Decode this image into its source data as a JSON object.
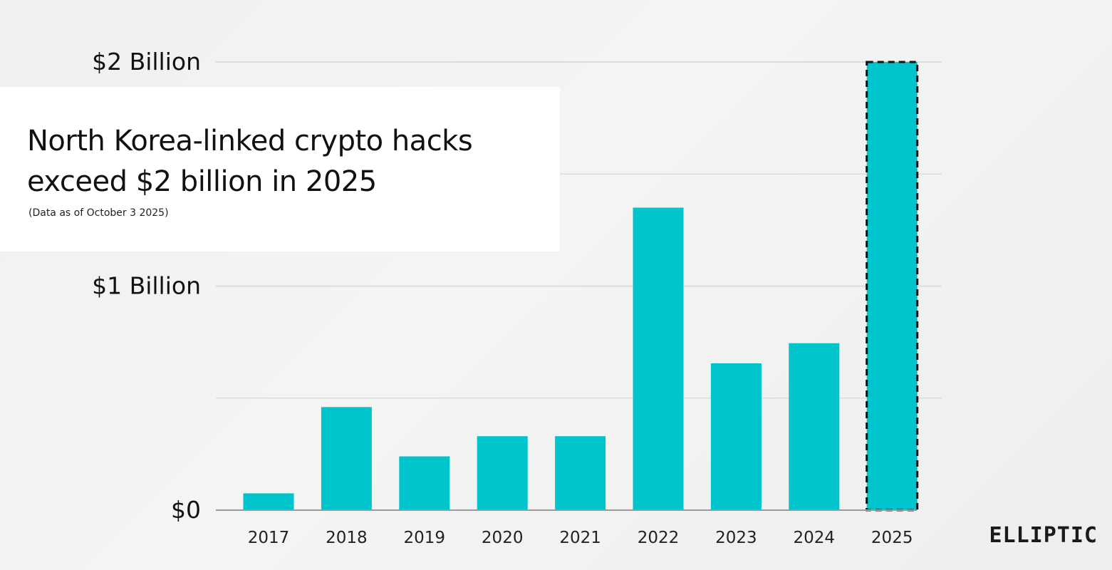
{
  "title": "North Korea-linked crypto hacks exceed $2 billion in 2025",
  "subtitle": "(Data as of October 3 2025)",
  "brand": "ELLIPTIC",
  "colors": {
    "bar": "#00c4cc",
    "highlight_border": "#111111",
    "grid": "#dcdcdc",
    "baseline": "#9a9a9a"
  },
  "chart_data": {
    "type": "bar",
    "title": "North Korea-linked crypto hacks exceed $2 billion in 2025",
    "subtitle": "(Data as of October 3 2025)",
    "categories": [
      "2017",
      "2018",
      "2019",
      "2020",
      "2021",
      "2022",
      "2023",
      "2024",
      "2025"
    ],
    "values": [
      0.075,
      0.46,
      0.24,
      0.33,
      0.33,
      1.35,
      0.655,
      0.745,
      2.0
    ],
    "unit": "billion USD",
    "ylim": [
      0,
      2
    ],
    "y_ticks": [
      {
        "value": 0,
        "label": "$0"
      },
      {
        "value": 1,
        "label": "$1 Billion"
      },
      {
        "value": 2,
        "label": "$2 Billion"
      }
    ],
    "minor_gridlines": [
      0.5,
      1.5
    ],
    "grid": true,
    "highlighted_bar": "2025",
    "highlight_style": "dashed-border"
  }
}
